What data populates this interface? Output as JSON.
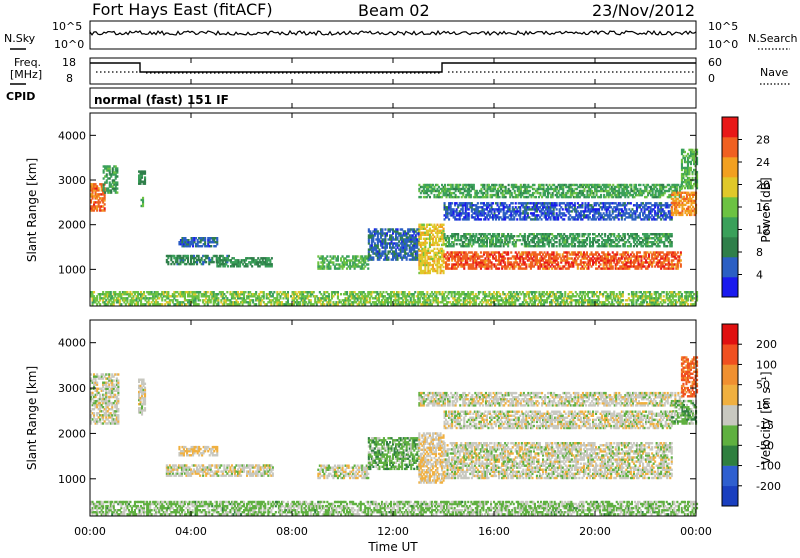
{
  "header": {
    "station": "Fort Hays East (fitACF)",
    "beam": "Beam 02",
    "date": "23/Nov/2012"
  },
  "strip_labels": {
    "nsky": "N.Sky",
    "nsearch": "N.Search",
    "freq_line1": "Freq.",
    "freq_line2": "[MHz]",
    "nave": "Nave",
    "cpid": "CPID",
    "mode": "normal (fast) 151 IF"
  },
  "strip_ticks": {
    "noise_top": "10^5",
    "noise_bottom": "10^0",
    "freq_top": "18",
    "freq_bottom": "8",
    "nave_top": "60",
    "nave_bottom": "0"
  },
  "panels": {
    "power": {
      "ylabel": "Slant Range [km]",
      "cbar_label": "Power [dB]"
    },
    "velocity": {
      "ylabel": "Slant Range [km]",
      "cbar_label": "Velocity [m s⁻¹]"
    }
  },
  "xaxis_title": "Time UT",
  "colors": {
    "power_scale": [
      "#1a1aee",
      "#2b5fc4",
      "#2f7f4a",
      "#3aa05a",
      "#6cc242",
      "#e0c82a",
      "#f2a020",
      "#f06020",
      "#e81818"
    ],
    "velocity_scale": [
      "#1a3fbf",
      "#2f5fcf",
      "#2f7f3f",
      "#5fb040",
      "#c8c8c0",
      "#f0b040",
      "#f09030",
      "#f05020",
      "#e01010"
    ]
  },
  "chart_data": [
    {
      "type": "heatmap",
      "name": "power",
      "x_unit": "hours UT",
      "x_ticks": [
        "00:00",
        "04:00",
        "08:00",
        "12:00",
        "16:00",
        "20:00",
        "00:00"
      ],
      "xlim": [
        0,
        24
      ],
      "ylim": [
        180,
        4500
      ],
      "y_ticks": [
        1000,
        2000,
        3000,
        4000
      ],
      "colorbar_ticks": [
        "4",
        "8",
        "12",
        "16",
        "20",
        "24",
        "28"
      ],
      "colorbar_range": [
        0,
        32
      ],
      "blobs": [
        {
          "t0": 0.0,
          "t1": 0.6,
          "r0": 2300,
          "r1": 2900,
          "v": 26
        },
        {
          "t0": 0.5,
          "t1": 1.1,
          "r0": 2700,
          "r1": 3300,
          "v": 12
        },
        {
          "t0": 1.9,
          "t1": 2.2,
          "r0": 2900,
          "r1": 3200,
          "v": 10
        },
        {
          "t0": 2.0,
          "t1": 2.1,
          "r0": 2400,
          "r1": 2600,
          "v": 14
        },
        {
          "t0": 3.0,
          "t1": 5.5,
          "r0": 1100,
          "r1": 1300,
          "v": 9
        },
        {
          "t0": 3.5,
          "t1": 5.0,
          "r0": 1500,
          "r1": 1700,
          "v": 6
        },
        {
          "t0": 5.0,
          "t1": 7.2,
          "r0": 1050,
          "r1": 1250,
          "v": 11
        },
        {
          "t0": 9.0,
          "t1": 11.0,
          "r0": 1000,
          "r1": 1300,
          "v": 14
        },
        {
          "t0": 11.0,
          "t1": 13.0,
          "r0": 1200,
          "r1": 1900,
          "v": 6
        },
        {
          "t0": 13.0,
          "t1": 14.0,
          "r0": 900,
          "r1": 2000,
          "v": 20
        },
        {
          "t0": 13.0,
          "t1": 23.4,
          "r0": 2600,
          "r1": 2900,
          "v": 13
        },
        {
          "t0": 14.0,
          "t1": 23.0,
          "r0": 1500,
          "r1": 1800,
          "v": 12
        },
        {
          "t0": 14.0,
          "t1": 23.4,
          "r0": 1000,
          "r1": 1400,
          "v": 27
        },
        {
          "t0": 14.0,
          "t1": 23.0,
          "r0": 2100,
          "r1": 2500,
          "v": 5
        },
        {
          "t0": 23.0,
          "t1": 24.0,
          "r0": 2200,
          "r1": 2700,
          "v": 24
        },
        {
          "t0": 23.4,
          "t1": 24.0,
          "r0": 2800,
          "r1": 3700,
          "v": 14
        },
        {
          "t0": 0.0,
          "t1": 24.0,
          "r0": 200,
          "r1": 500,
          "v": 16
        }
      ]
    },
    {
      "type": "heatmap",
      "name": "velocity",
      "x_unit": "hours UT",
      "x_ticks": [
        "00:00",
        "04:00",
        "08:00",
        "12:00",
        "16:00",
        "20:00",
        "00:00"
      ],
      "xlim": [
        0,
        24
      ],
      "ylim": [
        180,
        4500
      ],
      "y_ticks": [
        1000,
        2000,
        3000,
        4000
      ],
      "colorbar_ticks": [
        "-200",
        "-100",
        "-50",
        "-15",
        "15",
        "50",
        "100",
        "200"
      ],
      "colorbar_range": [
        -250,
        250
      ],
      "blobs": [
        {
          "t0": 0.0,
          "t1": 1.1,
          "r0": 2200,
          "r1": 3300,
          "v": 0
        },
        {
          "t0": 1.9,
          "t1": 2.2,
          "r0": 2400,
          "r1": 3200,
          "v": 0
        },
        {
          "t0": 3.0,
          "t1": 7.2,
          "r0": 1050,
          "r1": 1300,
          "v": 0
        },
        {
          "t0": 3.5,
          "t1": 5.0,
          "r0": 1500,
          "r1": 1700,
          "v": 20
        },
        {
          "t0": 9.0,
          "t1": 11.0,
          "r0": 1000,
          "r1": 1300,
          "v": 0
        },
        {
          "t0": 11.0,
          "t1": 13.0,
          "r0": 1200,
          "r1": 1900,
          "v": -60
        },
        {
          "t0": 13.0,
          "t1": 14.0,
          "r0": 900,
          "r1": 2000,
          "v": 30
        },
        {
          "t0": 13.0,
          "t1": 23.4,
          "r0": 2600,
          "r1": 2900,
          "v": 0
        },
        {
          "t0": 14.0,
          "t1": 23.0,
          "r0": 1000,
          "r1": 1800,
          "v": 0
        },
        {
          "t0": 14.0,
          "t1": 23.0,
          "r0": 2100,
          "r1": 2500,
          "v": 0
        },
        {
          "t0": 23.0,
          "t1": 24.0,
          "r0": 2200,
          "r1": 2700,
          "v": -60
        },
        {
          "t0": 23.4,
          "t1": 24.0,
          "r0": 2800,
          "r1": 3700,
          "v": 150
        },
        {
          "t0": 0.0,
          "t1": 24.0,
          "r0": 200,
          "r1": 500,
          "v": -40
        }
      ]
    }
  ]
}
